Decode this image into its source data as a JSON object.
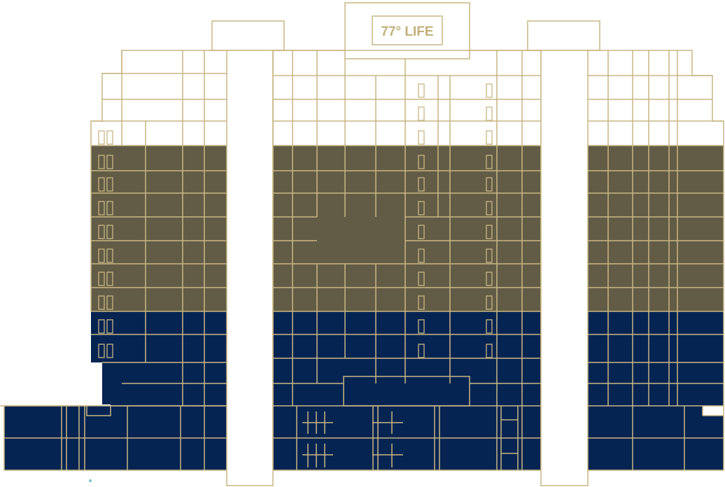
{
  "building": {
    "sign_text": "77° LIFE",
    "colors": {
      "outline": "#c9b683",
      "upper_floors": "#625c46",
      "lower_floors": "#062452",
      "background": "#ffffff",
      "sign_text": "#c2b07a",
      "marker_dot": "#7fc4d6"
    }
  }
}
